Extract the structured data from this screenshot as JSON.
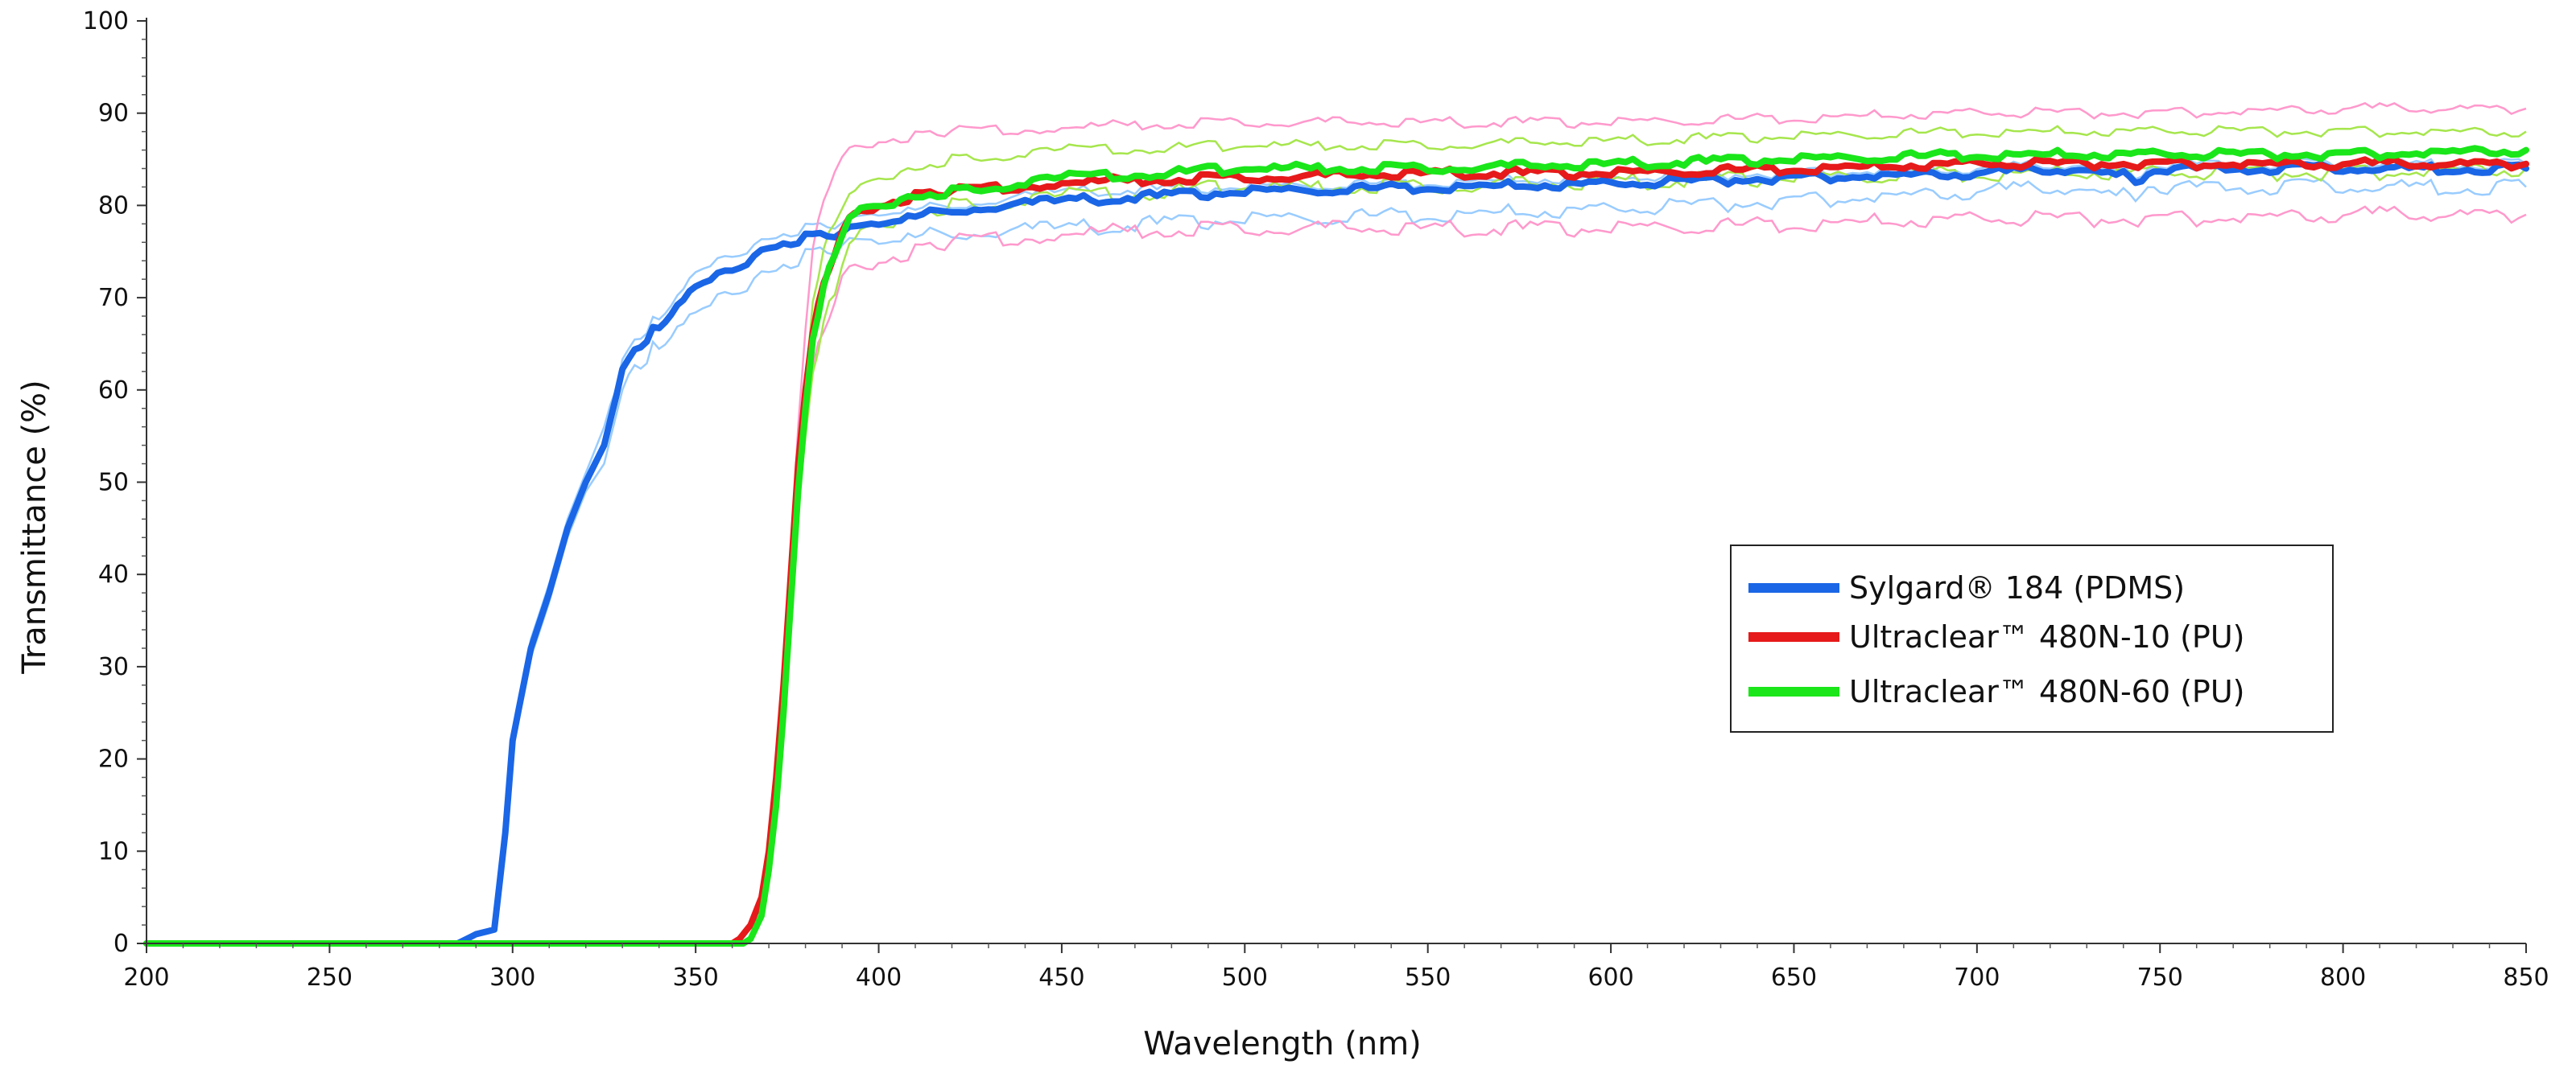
{
  "chart_data": {
    "type": "line",
    "title": "",
    "xlabel": "Wavelength (nm)",
    "ylabel": "Transmittance (%)",
    "xlim": [
      200,
      850
    ],
    "ylim": [
      0,
      100
    ],
    "xticks": [
      200,
      250,
      300,
      350,
      400,
      450,
      500,
      550,
      600,
      650,
      700,
      750,
      800,
      850
    ],
    "yticks": [
      0,
      10,
      20,
      30,
      40,
      50,
      60,
      70,
      80,
      90,
      100
    ],
    "grid": false,
    "legend_position": "right",
    "series": [
      {
        "name": "Sylgard® 184 (PDMS)",
        "color": "#1a66e6",
        "light_color": "#99ccff",
        "x": [
          200,
          285,
          290,
          295,
          298,
          300,
          305,
          310,
          315,
          320,
          325,
          330,
          335,
          340,
          345,
          350,
          360,
          370,
          380,
          390,
          400,
          420,
          450,
          500,
          550,
          600,
          650,
          700,
          730,
          740,
          745,
          750,
          800,
          850
        ],
        "mean": [
          0,
          0,
          1,
          1.5,
          12,
          22,
          32,
          38,
          45,
          50,
          54,
          62,
          65,
          67,
          69,
          71,
          73,
          75.5,
          76.5,
          77,
          78,
          79.5,
          80.5,
          81.5,
          82,
          82.3,
          83,
          83.5,
          84,
          83.5,
          82.5,
          84,
          84,
          84
        ],
        "upper": [
          0,
          0,
          1,
          1.5,
          13,
          23,
          33,
          39,
          46,
          51,
          56,
          63,
          66,
          68,
          70,
          72.5,
          74.5,
          76.5,
          77.5,
          78,
          79,
          80,
          81.5,
          82,
          82.5,
          83,
          83.5,
          84,
          84.5,
          84,
          83,
          84.5,
          84.5,
          84.5
        ],
        "lower": [
          0,
          0,
          1,
          1.5,
          11,
          21,
          31,
          37,
          44,
          49,
          52,
          60,
          63,
          65,
          66.5,
          68,
          70.5,
          73,
          74.5,
          75.5,
          76,
          77,
          77.5,
          78.5,
          79,
          79.5,
          80.5,
          81.5,
          82,
          81.5,
          81,
          82,
          82,
          82
        ]
      },
      {
        "name": "Ultraclear™ 480N-10 (PU)",
        "color": "#e61a1a",
        "light_color": "#ff99cc",
        "x": [
          200,
          360,
          362,
          365,
          368,
          370,
          372,
          374,
          376,
          378,
          380,
          382,
          385,
          388,
          390,
          392,
          395,
          400,
          410,
          420,
          450,
          500,
          550,
          600,
          650,
          700,
          750,
          800,
          850
        ],
        "mean": [
          0,
          0,
          0.5,
          2,
          5,
          10,
          18,
          28,
          40,
          52,
          60,
          66,
          72,
          75,
          77,
          78.5,
          79.5,
          80,
          81,
          81.5,
          82.5,
          83,
          83.5,
          83.5,
          84,
          84.5,
          84.5,
          84.5,
          84.5
        ],
        "upper": [
          0,
          0,
          0.5,
          2,
          5,
          10,
          19,
          30,
          42,
          56,
          66,
          75,
          81,
          84,
          85,
          86,
          86.5,
          87,
          87.5,
          88,
          88.5,
          89,
          89,
          89,
          89.5,
          90,
          90,
          90.5,
          90.5
        ],
        "lower": [
          0,
          0,
          0.5,
          2,
          5,
          10,
          17,
          27,
          38,
          50,
          57,
          62,
          67,
          70,
          72,
          73,
          73.5,
          74,
          75,
          76,
          77,
          77.5,
          77.5,
          77.5,
          78,
          78.5,
          78.5,
          79,
          79
        ]
      },
      {
        "name": "Ultraclear™ 480N-60 (PU)",
        "color": "#1ae61a",
        "light_color": "#a6e64d",
        "x": [
          200,
          363,
          365,
          368,
          370,
          372,
          374,
          376,
          378,
          380,
          382,
          385,
          388,
          390,
          392,
          395,
          400,
          410,
          420,
          450,
          500,
          550,
          600,
          650,
          700,
          750,
          800,
          850
        ],
        "mean": [
          0,
          0,
          0.5,
          3,
          8,
          15,
          25,
          37,
          49,
          58,
          65,
          71,
          75,
          77,
          78.5,
          79.5,
          80,
          81,
          81.5,
          83,
          84,
          84,
          84.5,
          85,
          85.5,
          85.5,
          85.5,
          86
        ],
        "upper": [
          0,
          0,
          0.5,
          3,
          8,
          16,
          26,
          39,
          51,
          61,
          69,
          75,
          78.5,
          80,
          81,
          82,
          83,
          84,
          85,
          86,
          86.5,
          86.5,
          87,
          87.5,
          88,
          88,
          88,
          88
        ],
        "lower": [
          0,
          0,
          0.5,
          3,
          8,
          14,
          24,
          35,
          47,
          55,
          61,
          67,
          71,
          74,
          75.5,
          77,
          78,
          79,
          80,
          81,
          82,
          82,
          82.5,
          83,
          83.5,
          83.5,
          83.5,
          84
        ]
      }
    ]
  }
}
